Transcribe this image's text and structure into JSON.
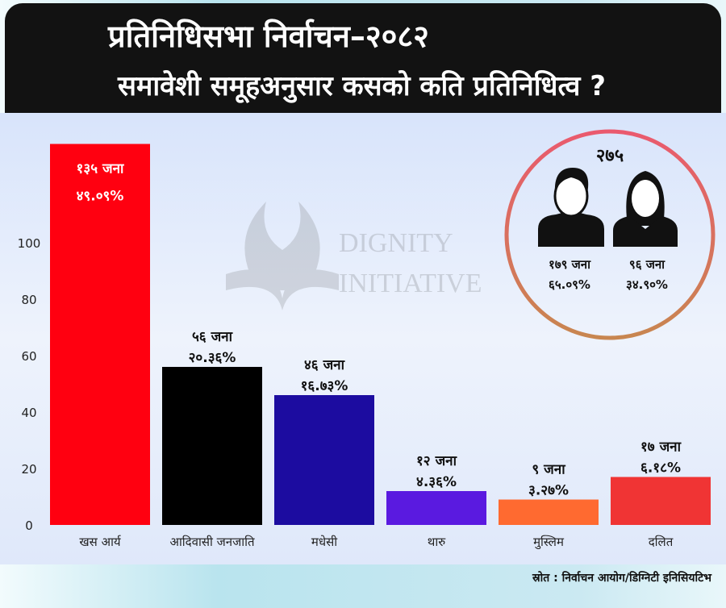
{
  "header": {
    "title": "प्रतिनिधिसभा निर्वाचन–२०८२",
    "subtitle": "समावेशी समूहअनुसार कसको कति प्रतिनिधित्व ?"
  },
  "watermark": "DIGNITY INITIATIVE",
  "source": "स्रोत : निर्वाचन आयोग/डिग्निटी इनिसियटिभ",
  "gender_summary": {
    "total": "२७५",
    "male": {
      "icon": "male-user-icon",
      "count": "१७९ जना",
      "percent": "६५.०९%"
    },
    "female": {
      "icon": "female-user-icon",
      "count": "९६ जना",
      "percent": "३४.९०%"
    }
  },
  "chart_data": {
    "type": "bar",
    "categories": [
      "खस आर्य",
      "आदिवासी जनजाति",
      "मधेसी",
      "थारु",
      "मुस्लिम",
      "दलित"
    ],
    "values": [
      135,
      56,
      46,
      12,
      9,
      17
    ],
    "count_labels": [
      "१३५ जना",
      "५६ जना",
      "४६ जना",
      "१२ जना",
      "९ जना",
      "१७ जना"
    ],
    "percent_labels": [
      "४९.०९%",
      "२०.३६%",
      "१६.७३%",
      "४.३६%",
      "३.२७%",
      "६.१८%"
    ],
    "colors": [
      "#ff0010",
      "#000000",
      "#1c0ca0",
      "#5a1ae0",
      "#ff6a30",
      "#f03434"
    ],
    "yticks": [
      0,
      20,
      40,
      60,
      80,
      100
    ],
    "ylim": [
      0,
      143
    ],
    "grid": false,
    "xlabel": "",
    "ylabel": ""
  }
}
